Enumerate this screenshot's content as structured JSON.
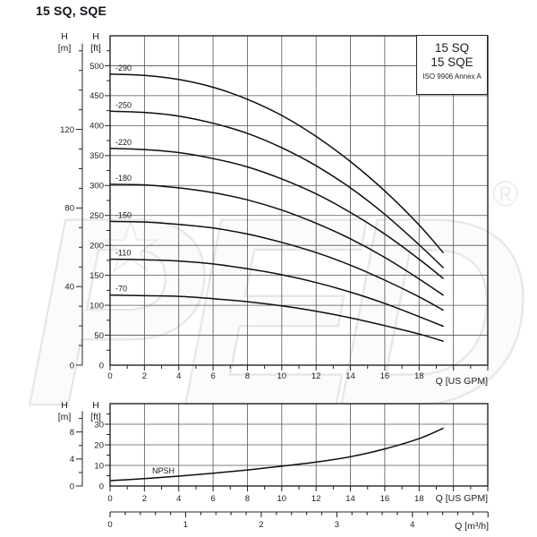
{
  "page": {
    "title": "15 SQ, SQE"
  },
  "legend": {
    "line1": "15 SQ",
    "line2": "15 SQE",
    "line3": "ISO 9906 Annex A"
  },
  "watermark": {
    "text": "PED",
    "star": "★",
    "registered": "®"
  },
  "colors": {
    "frame": "#232323",
    "grid": "#545454",
    "curve": "#0e0e0e",
    "text": "#20202a",
    "watermark": "#e7e7e7"
  },
  "chart_data": [
    {
      "id": "main",
      "type": "line",
      "title": "15 SQ, SQE pump performance curves",
      "xlabel": "Q [US GPM]",
      "ylabel_left": [
        "H",
        "[m]"
      ],
      "ylabel_right": [
        "H",
        "[ft]"
      ],
      "xlim": [
        0,
        22
      ],
      "ylim_ft": [
        0,
        550
      ],
      "grid": true,
      "x_labeled_ticks": [
        0,
        2,
        4,
        6,
        8,
        10,
        12,
        14,
        16,
        18
      ],
      "x_minor_step": 1,
      "y_labeled_ticks_ft": [
        0,
        50,
        100,
        150,
        200,
        250,
        300,
        350,
        400,
        450,
        500
      ],
      "y_minor_step_ft": 25,
      "m_axis": {
        "labeled_ticks": [
          0,
          40,
          80,
          120
        ],
        "minor_step": 10,
        "max_tick": 160
      },
      "series": [
        {
          "name": "-290",
          "points_gpm_ft": [
            [
              0,
              486
            ],
            [
              2,
              484
            ],
            [
              4,
              477
            ],
            [
              6,
              464
            ],
            [
              8,
              444
            ],
            [
              10,
              417
            ],
            [
              12,
              382
            ],
            [
              14,
              340
            ],
            [
              16,
              291
            ],
            [
              18,
              234
            ],
            [
              19.4,
              188
            ]
          ]
        },
        {
          "name": "-250",
          "points_gpm_ft": [
            [
              0,
              424
            ],
            [
              2,
              422
            ],
            [
              4,
              416
            ],
            [
              6,
              404
            ],
            [
              8,
              387
            ],
            [
              10,
              363
            ],
            [
              12,
              333
            ],
            [
              14,
              296
            ],
            [
              16,
              252
            ],
            [
              18,
              201
            ],
            [
              19.4,
              163
            ]
          ]
        },
        {
          "name": "-220",
          "points_gpm_ft": [
            [
              0,
              362
            ],
            [
              2,
              360
            ],
            [
              4,
              355
            ],
            [
              6,
              345
            ],
            [
              8,
              331
            ],
            [
              10,
              311
            ],
            [
              12,
              286
            ],
            [
              14,
              255
            ],
            [
              16,
              219
            ],
            [
              18,
              177
            ],
            [
              19.4,
              145
            ]
          ]
        },
        {
          "name": "-180",
          "points_gpm_ft": [
            [
              0,
              302
            ],
            [
              2,
              301
            ],
            [
              4,
              296
            ],
            [
              6,
              288
            ],
            [
              8,
              276
            ],
            [
              10,
              259
            ],
            [
              12,
              237
            ],
            [
              14,
              211
            ],
            [
              16,
              180
            ],
            [
              18,
              144
            ],
            [
              19.4,
              117
            ]
          ]
        },
        {
          "name": "-150",
          "points_gpm_ft": [
            [
              0,
              240
            ],
            [
              2,
              239
            ],
            [
              4,
              235
            ],
            [
              6,
              229
            ],
            [
              8,
              219
            ],
            [
              10,
              205
            ],
            [
              12,
              188
            ],
            [
              14,
              167
            ],
            [
              16,
              142
            ],
            [
              18,
              114
            ],
            [
              19.4,
              92
            ]
          ]
        },
        {
          "name": "-110",
          "points_gpm_ft": [
            [
              0,
              177
            ],
            [
              2,
              176
            ],
            [
              4,
              174
            ],
            [
              6,
              169
            ],
            [
              8,
              161
            ],
            [
              10,
              151
            ],
            [
              12,
              138
            ],
            [
              14,
              122
            ],
            [
              16,
              103
            ],
            [
              18,
              81
            ],
            [
              19.4,
              65
            ]
          ]
        },
        {
          "name": "-70",
          "points_gpm_ft": [
            [
              0,
              117
            ],
            [
              2,
              116
            ],
            [
              4,
              115
            ],
            [
              6,
              111
            ],
            [
              8,
              106
            ],
            [
              10,
              99
            ],
            [
              12,
              90
            ],
            [
              14,
              79
            ],
            [
              16,
              66
            ],
            [
              18,
              52
            ],
            [
              19.4,
              40
            ]
          ]
        }
      ]
    },
    {
      "id": "npsh",
      "type": "line",
      "title": "NPSH curve",
      "xlabel": "Q [US GPM]",
      "x2label": "Q [m³/h]",
      "ylabel_left": [
        "H",
        "[m]"
      ],
      "ylabel_right": [
        "H",
        "[ft]"
      ],
      "xlim": [
        0,
        22
      ],
      "ylim_ft": [
        0,
        40
      ],
      "grid": true,
      "x_labeled_ticks": [
        0,
        2,
        4,
        6,
        8,
        10,
        12,
        14,
        16,
        18
      ],
      "x_minor_step": 1,
      "y_labeled_ticks_ft": [
        0,
        10,
        20,
        30
      ],
      "y_minor_step_ft": 5,
      "m_axis": {
        "labeled_ticks": [
          0,
          4,
          8
        ],
        "minor_step": 2,
        "max_tick": 10
      },
      "x2_axis": {
        "labeled_ticks": [
          0,
          1,
          2,
          3,
          4
        ],
        "minor_step": 0.2,
        "max": 5
      },
      "series": [
        {
          "name": "NPSH",
          "points_gpm_ft": [
            [
              0,
              2.6
            ],
            [
              2,
              3.6
            ],
            [
              4,
              4.8
            ],
            [
              6,
              6.2
            ],
            [
              8,
              7.8
            ],
            [
              10,
              9.6
            ],
            [
              12,
              11.6
            ],
            [
              14,
              14.2
            ],
            [
              16,
              18
            ],
            [
              18,
              23
            ],
            [
              19.4,
              28
            ]
          ]
        }
      ]
    }
  ]
}
